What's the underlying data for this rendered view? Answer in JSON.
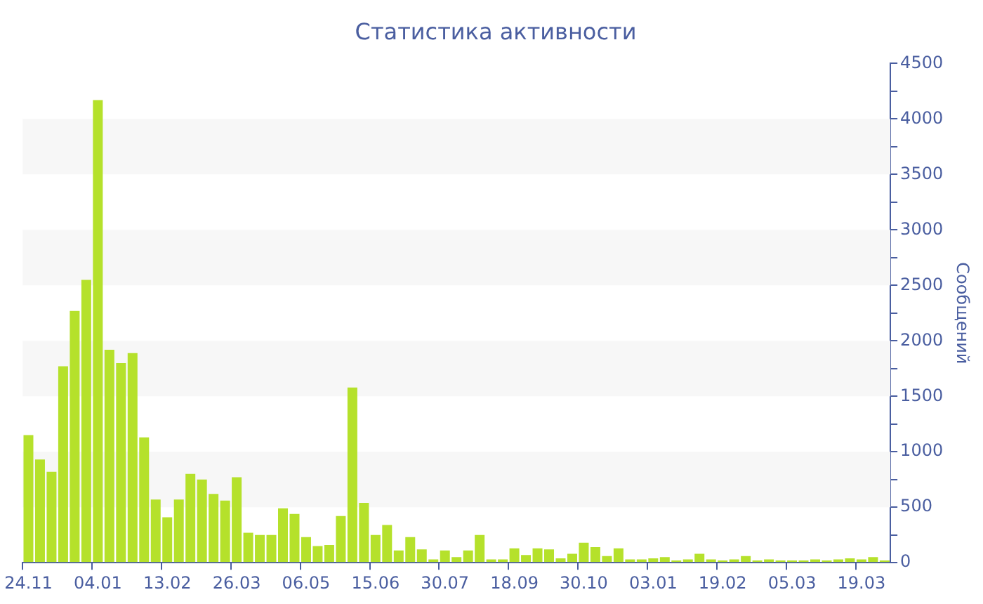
{
  "chart_data": {
    "type": "bar",
    "title": "Статистика активности",
    "ylabel": "Сообщений",
    "categories": [
      "24.11",
      null,
      null,
      null,
      null,
      null,
      "04.01",
      null,
      null,
      null,
      null,
      null,
      "13.02",
      null,
      null,
      null,
      null,
      null,
      "26.03",
      null,
      null,
      null,
      null,
      null,
      "06.05",
      null,
      null,
      null,
      null,
      null,
      "15.06",
      null,
      null,
      null,
      null,
      null,
      "30.07",
      null,
      null,
      null,
      null,
      null,
      "18.09",
      null,
      null,
      null,
      null,
      null,
      "30.10",
      null,
      null,
      null,
      null,
      null,
      "03.01",
      null,
      null,
      null,
      null,
      null,
      "19.02",
      null,
      null,
      null,
      null,
      null,
      "05.03",
      null,
      null,
      null,
      null,
      null,
      "19.03",
      null,
      null
    ],
    "values": [
      1150,
      930,
      820,
      1770,
      2270,
      2550,
      4170,
      1920,
      1800,
      1890,
      1130,
      570,
      410,
      570,
      800,
      750,
      620,
      560,
      770,
      270,
      250,
      250,
      490,
      440,
      230,
      150,
      160,
      420,
      1580,
      540,
      250,
      340,
      110,
      230,
      120,
      30,
      110,
      50,
      110,
      250,
      30,
      30,
      130,
      70,
      130,
      120,
      40,
      80,
      180,
      140,
      60,
      130,
      30,
      30,
      40,
      50,
      20,
      30,
      80,
      30,
      20,
      30,
      60,
      20,
      30,
      20,
      20,
      20,
      30,
      20,
      30,
      40,
      30,
      50,
      20
    ],
    "color": "#b5e12b",
    "ylim": [
      0,
      4500
    ],
    "yticks": [
      0,
      {
        "value": 250,
        "label": null
      },
      500,
      {
        "value": 750,
        "label": null
      },
      1000,
      {
        "value": 1250,
        "label": null
      },
      1500,
      {
        "value": 1750,
        "label": null
      },
      2000,
      {
        "value": 2250,
        "label": null
      },
      2500,
      {
        "value": 2750,
        "label": null
      },
      3000,
      {
        "value": 3250,
        "label": null
      },
      3500,
      {
        "value": 3750,
        "label": null
      },
      4000,
      {
        "value": 4250,
        "label": null
      },
      4500
    ],
    "bands": [
      {
        "axis": "y",
        "from": 500,
        "to": 1000,
        "color": "#f7f7f7"
      },
      {
        "axis": "y",
        "from": 1500,
        "to": 2000,
        "color": "#f7f7f7"
      },
      {
        "axis": "y",
        "from": 2500,
        "to": 3000,
        "color": "#f7f7f7"
      },
      {
        "axis": "y",
        "from": 3500,
        "to": 4000,
        "color": "#f7f7f7"
      }
    ],
    "grid": false,
    "legend": false
  }
}
